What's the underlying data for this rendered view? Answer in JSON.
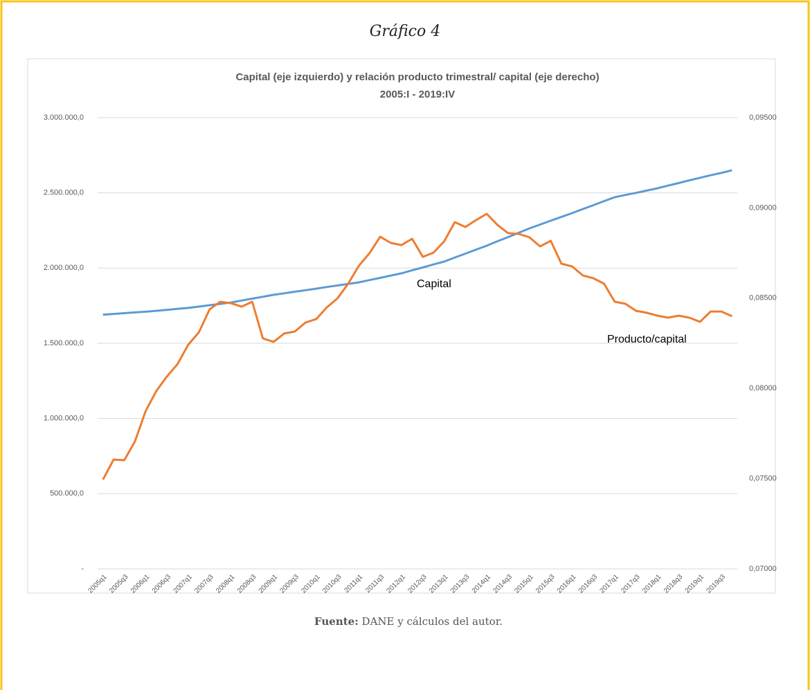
{
  "heading": "Gráfico 4",
  "source": {
    "label": "Fuente:",
    "text": "DANE y cálculos del autor."
  },
  "chart_data": {
    "type": "line",
    "title": [
      "Capital (eje izquierdo) y relación producto  trimestral/ capital (eje derecho)",
      "2005:I - 2019:IV"
    ],
    "categories": [
      "2005q1",
      null,
      "2005q3",
      null,
      "2006q1",
      null,
      "2006q3",
      null,
      "2007q1",
      null,
      "2007q3",
      null,
      "2008q1",
      null,
      "2008q3",
      null,
      "2009q1",
      null,
      "2009q3",
      null,
      "2010q1",
      null,
      "2010q3",
      null,
      "2011q1",
      null,
      "2011q3",
      null,
      "2012q1",
      null,
      "2012q3",
      null,
      "2013q1",
      null,
      "2013q3",
      null,
      "2014q1",
      null,
      "2014q3",
      null,
      "2015q1",
      null,
      "2015q3",
      null,
      "2016q1",
      null,
      "2016q3",
      null,
      "2017q1",
      null,
      "2017q3",
      null,
      "2018q1",
      null,
      "2018q3",
      null,
      "2019q1",
      null,
      "2019q3",
      null
    ],
    "series": [
      {
        "name": "Capital",
        "color": "#5b9bd5",
        "axis": "y",
        "values": [
          1690000,
          1695000,
          1700000,
          1705000,
          1710000,
          1716000,
          1722000,
          1729000,
          1735000,
          1744000,
          1753000,
          1762000,
          1771000,
          1784000,
          1797000,
          1809000,
          1822000,
          1832000,
          1843000,
          1853000,
          1863000,
          1874000,
          1884000,
          1895000,
          1905000,
          1920000,
          1935000,
          1950000,
          1965000,
          1985000,
          2004000,
          2024000,
          2043000,
          2070000,
          2096000,
          2123000,
          2149000,
          2178000,
          2206000,
          2235000,
          2264000,
          2289000,
          2315000,
          2340000,
          2365000,
          2392000,
          2418000,
          2445000,
          2471000,
          2486000,
          2500000,
          2515000,
          2530000,
          2548000,
          2565000,
          2583000,
          2600000,
          2617000,
          2633000,
          2650000
        ]
      },
      {
        "name": "Producto/capital",
        "color": "#ed7d31",
        "axis": "y2",
        "values": [
          0.07495,
          0.07606,
          0.07602,
          0.07706,
          0.07874,
          0.07985,
          0.08066,
          0.08135,
          0.08242,
          0.08311,
          0.08438,
          0.0848,
          0.08472,
          0.08453,
          0.0848,
          0.08277,
          0.08258,
          0.08304,
          0.08315,
          0.08365,
          0.08384,
          0.08449,
          0.08499,
          0.0858,
          0.08679,
          0.08749,
          0.0884,
          0.08806,
          0.08794,
          0.08829,
          0.08729,
          0.08752,
          0.08814,
          0.08921,
          0.08894,
          0.08933,
          0.08967,
          0.08906,
          0.0886,
          0.08856,
          0.08837,
          0.08787,
          0.08818,
          0.08691,
          0.08676,
          0.08626,
          0.0861,
          0.0858,
          0.0848,
          0.08469,
          0.0843,
          0.08419,
          0.08403,
          0.08392,
          0.08403,
          0.08392,
          0.08369,
          0.08426,
          0.08426,
          0.084
        ]
      }
    ],
    "ylim": [
      0,
      3000000
    ],
    "yticks": [
      {
        "value": 0,
        "label": "-"
      },
      {
        "value": 500000,
        "label": "500.000,0"
      },
      {
        "value": 1000000,
        "label": "1.000.000,0"
      },
      {
        "value": 1500000,
        "label": "1.500.000,0"
      },
      {
        "value": 2000000,
        "label": "2.000.000,0"
      },
      {
        "value": 2500000,
        "label": "2.500.000,0"
      },
      {
        "value": 3000000,
        "label": "3.000.000,0"
      }
    ],
    "y2lim": [
      0.07,
      0.095
    ],
    "y2ticks": [
      {
        "value": 0.07,
        "label": "0,07000"
      },
      {
        "value": 0.075,
        "label": "0,07500"
      },
      {
        "value": 0.08,
        "label": "0,08000"
      },
      {
        "value": 0.085,
        "label": "0,08500"
      },
      {
        "value": 0.09,
        "label": "0,09000"
      },
      {
        "value": 0.095,
        "label": "0,09500"
      }
    ],
    "grid": true
  }
}
